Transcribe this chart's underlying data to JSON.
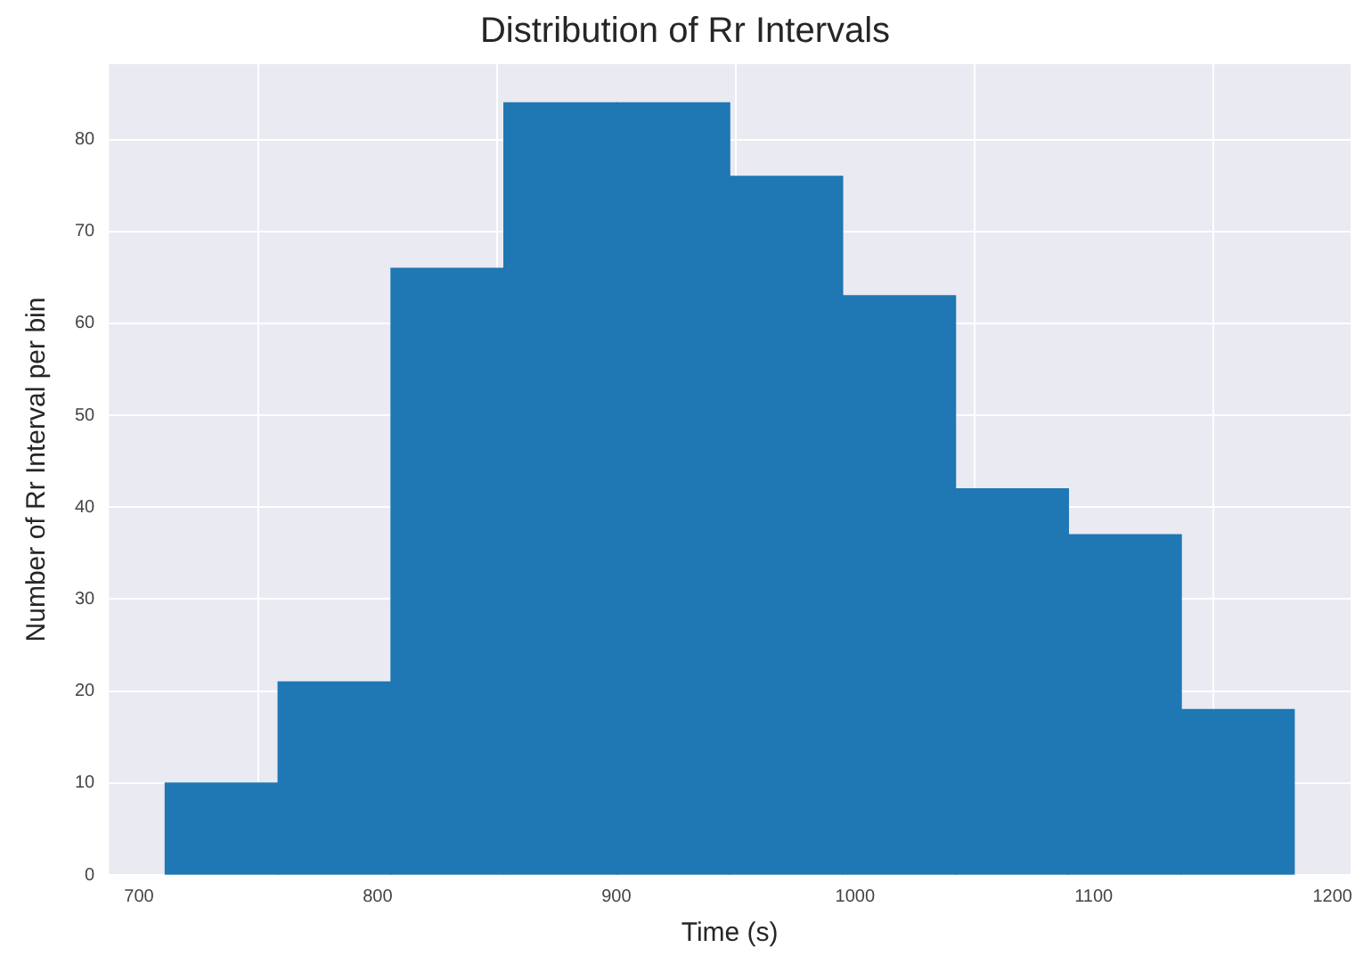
{
  "chart_data": {
    "type": "histogram",
    "title": "Distribution of Rr Intervals",
    "xlabel": "Time (s)",
    "ylabel": "Number of Rr Interval per bin",
    "bins": [
      711,
      758.3,
      805.6,
      852.9,
      900.2,
      947.5,
      994.8,
      1042.1,
      1089.4,
      1136.7,
      1184
    ],
    "values": [
      10,
      21,
      66,
      84,
      84,
      76,
      63,
      42,
      37,
      18
    ],
    "color": "#1f77b4",
    "xlim": [
      687.4,
      1207.6
    ],
    "xticks": [
      700,
      800,
      900,
      1000,
      1100,
      1200
    ],
    "ylim": [
      0,
      88.2
    ],
    "yticks": [
      0,
      10,
      20,
      30,
      40,
      50,
      60,
      70,
      80
    ],
    "grid": true
  }
}
